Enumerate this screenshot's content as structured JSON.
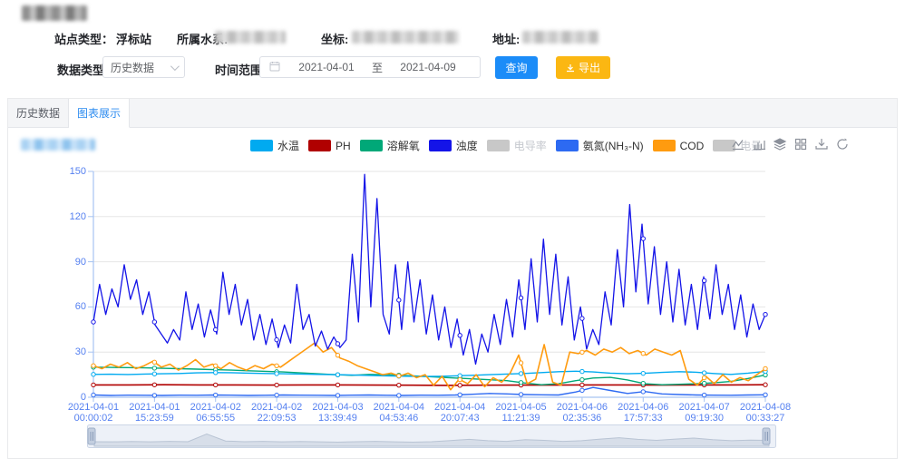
{
  "header": {
    "station_type_label": "站点类型：",
    "station_type_value": "浮标站",
    "water_system_label": "所属水系:",
    "coordinate_label": "坐标:",
    "address_label": "地址:"
  },
  "filters": {
    "data_type_label": "数据类型",
    "data_type_value": "历史数据",
    "time_range_label": "时间范围",
    "date_start": "2021-04-01",
    "date_separator": "至",
    "date_end": "2021-04-09",
    "query_button": "查询",
    "export_button": "导出",
    "query_color": "#1b8cf8",
    "export_color": "#fbb712"
  },
  "tabs": [
    {
      "label": "历史数据",
      "active": false
    },
    {
      "label": "图表展示",
      "active": true
    }
  ],
  "toolbox_icons": [
    "line-chart",
    "bar-chart",
    "stack",
    "tile",
    "download",
    "restore"
  ],
  "chart_data": {
    "type": "line",
    "ylim": [
      0,
      150
    ],
    "y_ticks": [
      0,
      30,
      60,
      90,
      120,
      150
    ],
    "grid": true,
    "legend_position": "top",
    "axis_label_color": "#5580f0",
    "axis_line_color": "#a6c3f2",
    "grid_color": "#e6e6e6",
    "x_labels": [
      [
        "2021-04-01",
        "00:00:02"
      ],
      [
        "2021-04-01",
        "15:23:59"
      ],
      [
        "2021-04-02",
        "06:55:55"
      ],
      [
        "2021-04-02",
        "22:09:53"
      ],
      [
        "2021-04-03",
        "13:39:49"
      ],
      [
        "2021-04-04",
        "04:53:46"
      ],
      [
        "2021-04-04",
        "20:07:43"
      ],
      [
        "2021-04-05",
        "11:21:39"
      ],
      [
        "2021-04-06",
        "02:35:36"
      ],
      [
        "2021-04-06",
        "17:57:33"
      ],
      [
        "2021-04-07",
        "09:19:30"
      ],
      [
        "2021-04-08",
        "00:33:27"
      ]
    ],
    "legend": [
      {
        "name": "水温",
        "color": "#00aaf0",
        "selected": true
      },
      {
        "name": "PH",
        "color": "#b00000",
        "selected": true
      },
      {
        "name": "溶解氧",
        "color": "#00a878",
        "selected": true
      },
      {
        "name": "浊度",
        "color": "#1414e8",
        "selected": true
      },
      {
        "name": "电导率",
        "color": "#c8c8c8",
        "selected": false
      },
      {
        "name": "氨氮(NH₃-N)",
        "color": "#2d6af2",
        "selected": true
      },
      {
        "name": "COD",
        "color": "#ff9b0f",
        "selected": true
      },
      {
        "name": "电量",
        "color": "#c8c8c8",
        "selected": false
      }
    ],
    "series": [
      {
        "name": "PH",
        "color": "#b00000",
        "width": 1.6,
        "values": [
          8.2,
          8.2,
          8.3,
          8.2,
          8.2,
          8.1,
          8.2,
          8.2,
          8.1,
          8.0,
          7.9,
          8.0,
          8.1,
          8.1,
          8.2,
          8.2,
          8.1,
          8.2,
          8.2,
          8.3
        ]
      },
      {
        "name": "溶解氧",
        "color": "#00a878",
        "width": 1.4,
        "values": [
          20.0,
          19.8,
          19.7,
          19.5,
          19.2,
          19.0,
          18.7,
          18.3,
          18.0,
          17.6,
          17.2,
          16.8,
          16.2,
          15.6,
          15.0,
          14.6,
          15.2,
          15.0,
          14.5,
          14.0,
          13.4,
          12.8,
          12.2,
          11.6,
          11.0,
          9.5,
          8.3,
          9.0,
          11.0,
          12.8,
          13.2,
          11.5,
          9.0,
          8.3,
          8.6,
          9.0,
          9.6,
          10.5,
          12.5,
          14.8
        ]
      },
      {
        "name": "水温",
        "color": "#00aaf0",
        "width": 1.4,
        "values": [
          15.2,
          15.3,
          15.1,
          15.4,
          15.6,
          15.8,
          16.2,
          16.4,
          16.3,
          16.0,
          15.8,
          15.6,
          15.4,
          15.2,
          15.0,
          14.8,
          14.5,
          14.2,
          14.0,
          13.8,
          13.9,
          14.2,
          14.6,
          15.0,
          15.4,
          15.8,
          16.4,
          17.0,
          17.3,
          16.8,
          16.0,
          15.6,
          15.9,
          16.5,
          17.0,
          16.6,
          15.8,
          15.2,
          16.0,
          17.2
        ]
      },
      {
        "name": "氨氮(NH₃-N)",
        "color": "#2d6af2",
        "width": 1.4,
        "values": [
          1.5,
          1.2,
          1.4,
          1.3,
          1.2,
          1.4,
          1.3,
          1.5,
          1.4,
          1.2,
          1.3,
          1.5,
          1.4,
          1.3,
          1.2,
          1.4,
          1.5,
          1.3,
          1.2,
          1.4,
          1.3,
          1.5,
          2.0,
          2.5,
          2.2,
          1.8,
          1.6,
          1.5,
          3.5,
          6.5,
          4.5,
          2.5,
          3.8,
          2.2,
          1.8,
          1.5,
          1.4,
          1.3,
          1.5,
          1.6
        ]
      },
      {
        "name": "COD",
        "color": "#ff9b0f",
        "width": 1.6,
        "values": [
          21,
          19,
          22,
          20,
          23,
          19,
          21,
          24,
          20,
          22,
          18,
          21,
          25,
          20,
          22,
          19,
          23,
          20,
          18,
          21,
          19,
          22,
          20,
          24,
          28,
          32,
          36,
          30,
          33,
          26,
          24,
          21,
          19,
          17,
          15,
          16,
          14,
          16,
          13,
          15,
          8,
          14,
          5,
          12,
          9,
          15,
          7,
          13,
          10,
          16,
          28,
          9,
          12,
          35,
          10,
          8,
          30,
          29,
          31,
          28,
          32,
          30,
          33,
          29,
          31,
          28,
          32,
          30,
          28,
          31,
          12,
          8,
          14,
          9,
          15,
          10,
          13,
          11,
          15,
          19
        ]
      },
      {
        "name": "浊度",
        "color": "#1414e8",
        "width": 1.3,
        "values": [
          50,
          75,
          55,
          72,
          60,
          88,
          65,
          78,
          55,
          70,
          48,
          42,
          36,
          45,
          38,
          70,
          45,
          62,
          40,
          58,
          42,
          83,
          55,
          75,
          48,
          65,
          38,
          55,
          35,
          52,
          33,
          48,
          36,
          75,
          45,
          55,
          34,
          44,
          32,
          40,
          33,
          38,
          95,
          50,
          148,
          60,
          132,
          55,
          42,
          88,
          45,
          90,
          50,
          78,
          42,
          68,
          38,
          60,
          33,
          52,
          28,
          45,
          22,
          42,
          30,
          55,
          35,
          65,
          40,
          78,
          45,
          92,
          50,
          105,
          55,
          95,
          48,
          80,
          38,
          60,
          32,
          45,
          35,
          70,
          48,
          98,
          60,
          128,
          70,
          115,
          62,
          100,
          55,
          90,
          50,
          85,
          48,
          75,
          45,
          80,
          52,
          88,
          55,
          75,
          45,
          68,
          40,
          62,
          45,
          55
        ]
      }
    ],
    "datazoom_overview": [
      0.28,
      0.27,
      0.29,
      0.27,
      0.3,
      0.28,
      0.75,
      0.32,
      0.28,
      0.3,
      0.27,
      0.29,
      0.27,
      0.25,
      0.28,
      0.3,
      0.27,
      0.25,
      0.28,
      0.35,
      0.42,
      0.34,
      0.3,
      0.4,
      0.36,
      0.3,
      0.34,
      0.44,
      0.52,
      0.42,
      0.36,
      0.44,
      0.5,
      0.4,
      0.34,
      0.38,
      0.36
    ]
  }
}
